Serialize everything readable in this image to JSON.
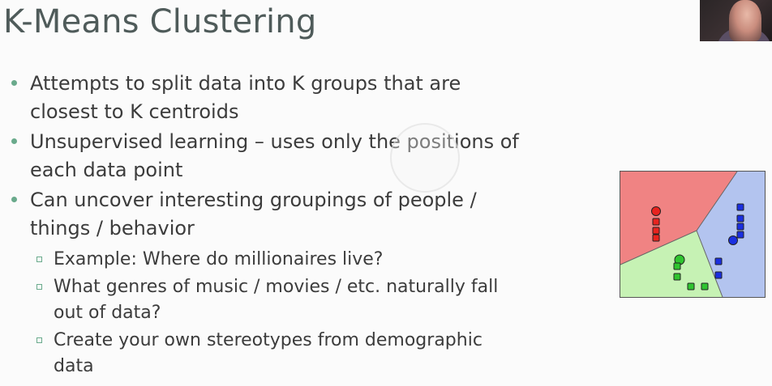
{
  "slide": {
    "title": "K-Means Clustering",
    "bullets": [
      "Attempts to split data into K groups that are closest to K centroids",
      "Unsupervised learning – uses only the positions of each data point",
      "Can uncover interesting groupings of people / things / behavior"
    ],
    "sub_bullets": [
      "Example: Where do millionaires live?",
      "What genres of music / movies / etc. naturally fall out of data?",
      "Create your own stereotypes from demographic data"
    ]
  },
  "colors": {
    "title": "#4f5b5a",
    "bullet_marker": "#6aaa8c",
    "red_region": "#f08383",
    "green_region": "#c6f2b4",
    "blue_region": "#b3c4ef",
    "red_points": "#e8231f",
    "green_points": "#2fc42f",
    "blue_points": "#1a2fe0"
  }
}
